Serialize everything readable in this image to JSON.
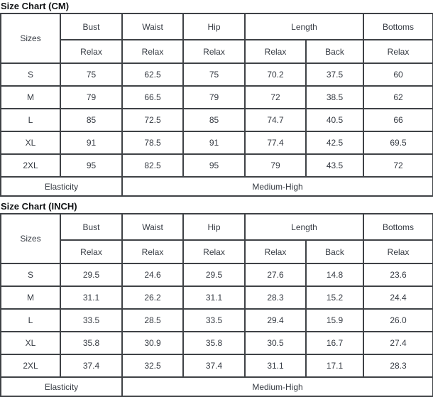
{
  "page": {
    "background_color": "#ffffff",
    "text_color": "#363b43",
    "border_color": "#3f4246"
  },
  "tables": [
    {
      "title": "Size Chart (CM)",
      "header": {
        "sizes": "Sizes",
        "bust": "Bust",
        "waist": "Waist",
        "hip": "Hip",
        "length": "Length",
        "bottoms": "Bottoms"
      },
      "subheader": {
        "bust": "Relax",
        "waist": "Relax",
        "hip": "Relax",
        "length_relax": "Relax",
        "length_back": "Back",
        "bottoms": "Relax"
      },
      "rows": [
        {
          "size": "S",
          "values": [
            "75",
            "62.5",
            "75",
            "70.2",
            "37.5",
            "60"
          ]
        },
        {
          "size": "M",
          "values": [
            "79",
            "66.5",
            "79",
            "72",
            "38.5",
            "62"
          ]
        },
        {
          "size": "L",
          "values": [
            "85",
            "72.5",
            "85",
            "74.7",
            "40.5",
            "66"
          ]
        },
        {
          "size": "XL",
          "values": [
            "91",
            "78.5",
            "91",
            "77.4",
            "42.5",
            "69.5"
          ]
        },
        {
          "size": "2XL",
          "values": [
            "95",
            "82.5",
            "95",
            "79",
            "43.5",
            "72"
          ]
        }
      ],
      "footer": {
        "label": "Elasticity",
        "value": "Medium-High"
      }
    },
    {
      "title": "Size Chart (INCH)",
      "header": {
        "sizes": "Sizes",
        "bust": "Bust",
        "waist": "Waist",
        "hip": "Hip",
        "length": "Length",
        "bottoms": "Bottoms"
      },
      "subheader": {
        "bust": "Relax",
        "waist": "Relax",
        "hip": "Relax",
        "length_relax": "Relax",
        "length_back": "Back",
        "bottoms": "Relax"
      },
      "rows": [
        {
          "size": "S",
          "values": [
            "29.5",
            "24.6",
            "29.5",
            "27.6",
            "14.8",
            "23.6"
          ]
        },
        {
          "size": "M",
          "values": [
            "31.1",
            "26.2",
            "31.1",
            "28.3",
            "15.2",
            "24.4"
          ]
        },
        {
          "size": "L",
          "values": [
            "33.5",
            "28.5",
            "33.5",
            "29.4",
            "15.9",
            "26.0"
          ]
        },
        {
          "size": "XL",
          "values": [
            "35.8",
            "30.9",
            "35.8",
            "30.5",
            "16.7",
            "27.4"
          ]
        },
        {
          "size": "2XL",
          "values": [
            "37.4",
            "32.5",
            "37.4",
            "31.1",
            "17.1",
            "28.3"
          ]
        }
      ],
      "footer": {
        "label": "Elasticity",
        "value": "Medium-High"
      }
    }
  ]
}
